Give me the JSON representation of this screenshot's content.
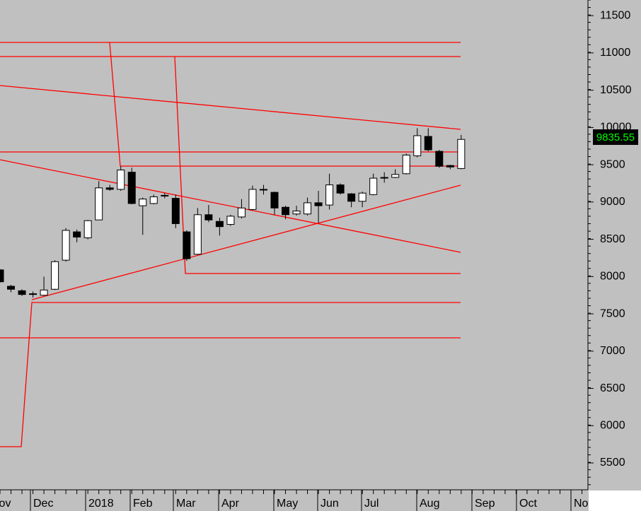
{
  "chart_data": {
    "type": "candlestick",
    "x_labels": [
      "Nov",
      "Dec",
      "2018",
      "Feb",
      "Mar",
      "Apr",
      "May",
      "Jun",
      "Jul",
      "Aug",
      "Sep",
      "Oct",
      "Nov"
    ],
    "open": [
      8090,
      7870,
      7810,
      7770,
      7750,
      7830,
      8220,
      8600,
      8520,
      8760,
      9190,
      9170,
      9400,
      8950,
      8980,
      9090,
      9050,
      8600,
      8300,
      8830,
      8740,
      8700,
      8800,
      8900,
      9170,
      9130,
      8930,
      8840,
      8840,
      8990,
      8960,
      9230,
      9110,
      9010,
      9100,
      9330,
      9330,
      9380,
      9620,
      9880,
      9680,
      9490,
      9450
    ],
    "high": [
      8100,
      7890,
      7830,
      7800,
      8000,
      8220,
      8650,
      8630,
      8760,
      9280,
      9230,
      9480,
      9460,
      9060,
      9100,
      9120,
      9100,
      8620,
      8920,
      8960,
      8790,
      8830,
      9040,
      9220,
      9230,
      9140,
      8950,
      8950,
      9060,
      9150,
      9380,
      9250,
      9120,
      9140,
      9380,
      9400,
      9440,
      9650,
      9990,
      9990,
      9700,
      9500,
      9900
    ],
    "low": [
      7920,
      7790,
      7740,
      7720,
      7740,
      7820,
      8200,
      8460,
      8500,
      8760,
      9150,
      9150,
      8970,
      8560,
      8970,
      9050,
      8650,
      8210,
      8290,
      8730,
      8550,
      8680,
      8780,
      8890,
      9100,
      8830,
      8770,
      8820,
      8820,
      8720,
      8900,
      9100,
      8930,
      8930,
      9090,
      9260,
      9320,
      9370,
      9600,
      9680,
      9460,
      9440,
      9440
    ],
    "close": [
      7930,
      7830,
      7760,
      7760,
      7820,
      8200,
      8620,
      8530,
      8750,
      9190,
      9170,
      9430,
      8980,
      9040,
      9070,
      9080,
      8710,
      8240,
      8830,
      8760,
      8670,
      8810,
      8920,
      9170,
      9160,
      8920,
      8830,
      8880,
      8990,
      8950,
      9230,
      9120,
      9010,
      9120,
      9320,
      9320,
      9370,
      9630,
      9890,
      9700,
      9480,
      9470,
      9840
    ],
    "up_color": "#ffffff",
    "down_color": "#000000",
    "last_price": 9835.55,
    "ylim": [
      5140,
      11710
    ],
    "yticks": [
      5500,
      6000,
      6500,
      7000,
      7500,
      8000,
      8500,
      9000,
      9500,
      10000,
      10500,
      11000,
      11500
    ],
    "grid": false
  }
}
